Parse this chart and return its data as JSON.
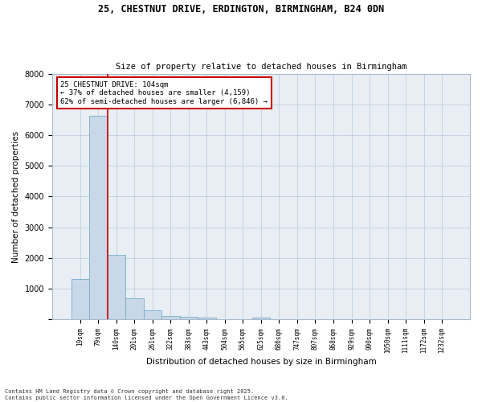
{
  "title_line1": "25, CHESTNUT DRIVE, ERDINGTON, BIRMINGHAM, B24 0DN",
  "title_line2": "Size of property relative to detached houses in Birmingham",
  "xlabel": "Distribution of detached houses by size in Birmingham",
  "ylabel": "Number of detached properties",
  "categories": [
    "19sqm",
    "79sqm",
    "140sqm",
    "201sqm",
    "261sqm",
    "322sqm",
    "383sqm",
    "443sqm",
    "504sqm",
    "565sqm",
    "625sqm",
    "686sqm",
    "747sqm",
    "807sqm",
    "868sqm",
    "929sqm",
    "990sqm",
    "1050sqm",
    "1111sqm",
    "1172sqm",
    "1232sqm"
  ],
  "values": [
    1320,
    6640,
    2090,
    680,
    305,
    120,
    75,
    55,
    0,
    0,
    55,
    0,
    0,
    0,
    0,
    0,
    0,
    0,
    0,
    0,
    0
  ],
  "bar_color": "#c8d8e8",
  "bar_edge_color": "#7aaac8",
  "vline_x": 1.5,
  "vline_color": "#cc0000",
  "annotation_text": "25 CHESTNUT DRIVE: 104sqm\n← 37% of detached houses are smaller (4,159)\n62% of semi-detached houses are larger (6,846) →",
  "annotation_box_color": "#ffffff",
  "annotation_box_edge": "#cc0000",
  "ylim": [
    0,
    8000
  ],
  "yticks": [
    0,
    1000,
    2000,
    3000,
    4000,
    5000,
    6000,
    7000,
    8000
  ],
  "grid_color": "#c0d0e0",
  "bg_color": "#e8eef4",
  "fig_color": "#ffffff",
  "footnote": "Contains HM Land Registry data © Crown copyright and database right 2025.\nContains public sector information licensed under the Open Government Licence v3.0."
}
